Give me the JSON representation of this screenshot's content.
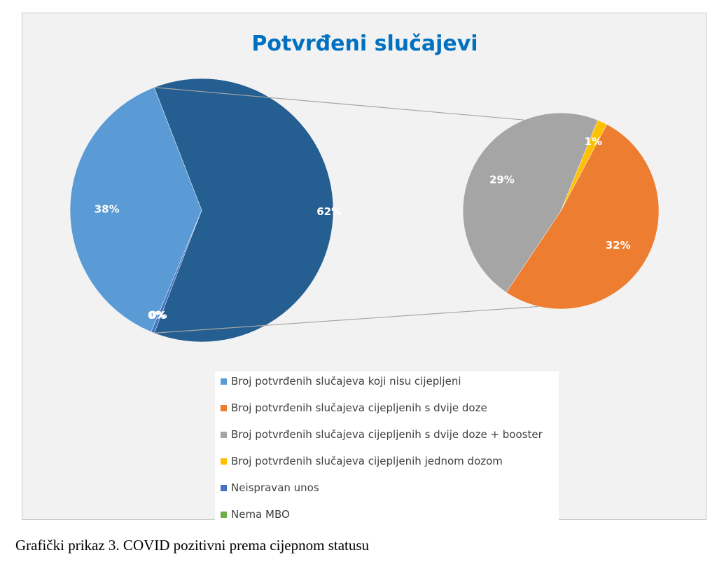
{
  "chart_data": {
    "type": "pie",
    "title": "Potvrđeni slučajevi",
    "subtype": "pie-of-pie",
    "primary_pie": {
      "slices": [
        {
          "series": 0,
          "value": 38,
          "label": "38%"
        },
        {
          "series": "other",
          "value": 62,
          "label": "62%"
        },
        {
          "series": 4,
          "value": 0.4,
          "label": "0%"
        },
        {
          "series": 5,
          "value": 0,
          "label": "0%"
        }
      ]
    },
    "secondary_pie": {
      "slices": [
        {
          "series": 1,
          "value": 32,
          "label": "32%"
        },
        {
          "series": 2,
          "value": 29,
          "label": "29%"
        },
        {
          "series": 3,
          "value": 1,
          "label": "1%"
        }
      ]
    },
    "legend": {
      "position": "bottom",
      "entries": [
        {
          "name": "Broj potvrđenih slučajeva koji nisu cijepljeni",
          "color": "#5b9bd5"
        },
        {
          "name": "Broj potvrđenih slučajeva cijepljenih s dvije doze",
          "color": "#ed7d31"
        },
        {
          "name": "Broj potvrđenih slučajeva cijepljenih s dvije doze + booster",
          "color": "#a5a5a5"
        },
        {
          "name": "Broj potvrđenih slučajeva cijepljenih jednom dozom",
          "color": "#ffc000"
        },
        {
          "name": "Neispravan unos",
          "color": "#4472c4"
        },
        {
          "name": "Nema MBO",
          "color": "#70ad47"
        }
      ]
    },
    "colors": {
      "other_slice": "#255e91",
      "title": "#0070c0",
      "connector": "#a6a6a6",
      "background": "#f2f2f2"
    }
  },
  "caption": "Grafički prikaz 3. COVID pozitivni prema cijepnom statusu"
}
